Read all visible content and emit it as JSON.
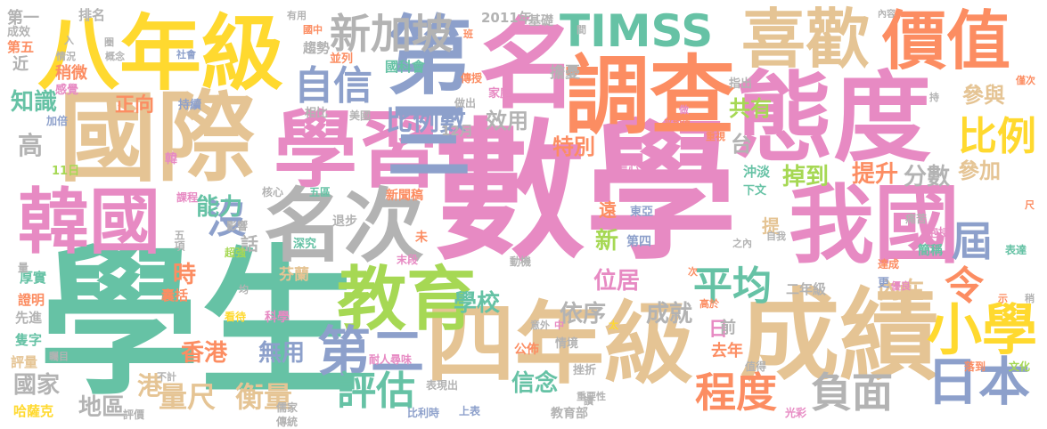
{
  "palette": [
    "#e78ac3",
    "#66c2a5",
    "#e5c494",
    "#ffd92f",
    "#fc8d62",
    "#8da0cb",
    "#a6d854",
    "#b3b3b3"
  ],
  "words": [
    {
      "text": "數學",
      "color": "#e78ac3",
      "orient": "h"
    },
    {
      "text": "學生",
      "color": "#66c2a5",
      "orient": "h"
    },
    {
      "text": "國際",
      "color": "#e5c494",
      "orient": "h"
    },
    {
      "text": "四年級",
      "color": "#e5c494",
      "orient": "h"
    },
    {
      "text": "成績",
      "color": "#e5c494",
      "orient": "h"
    },
    {
      "text": "學習",
      "color": "#e78ac3",
      "orient": "h"
    },
    {
      "text": "態度",
      "color": "#e78ac3",
      "orient": "h"
    },
    {
      "text": "八年級",
      "color": "#ffd92f",
      "orient": "h"
    },
    {
      "text": "調查",
      "color": "#fc8d62",
      "orient": "h"
    },
    {
      "text": "名次",
      "color": "#b3b3b3",
      "orient": "h"
    },
    {
      "text": "我國",
      "color": "#e78ac3",
      "orient": "h"
    },
    {
      "text": "韓國",
      "color": "#e78ac3",
      "orient": "h"
    },
    {
      "text": "名",
      "color": "#e78ac3",
      "orient": "h"
    },
    {
      "text": "第三",
      "color": "#8da0cb",
      "orient": "v"
    },
    {
      "text": "喜歡",
      "color": "#e5c494",
      "orient": "h"
    },
    {
      "text": "價值",
      "color": "#fc8d62",
      "orient": "h"
    },
    {
      "text": "教育",
      "color": "#a6d854",
      "orient": "h"
    },
    {
      "text": "TIMSS",
      "color": "#66c2a5",
      "orient": "h"
    },
    {
      "text": "新加坡",
      "color": "#b3b3b3",
      "orient": "h"
    },
    {
      "text": "第二",
      "color": "#8da0cb",
      "orient": "h"
    },
    {
      "text": "小學",
      "color": "#ffd92f",
      "orient": "h"
    },
    {
      "text": "日本",
      "color": "#8da0cb",
      "orient": "h"
    },
    {
      "text": "平均",
      "color": "#66c2a5",
      "orient": "h"
    },
    {
      "text": "評估",
      "color": "#66c2a5",
      "orient": "h"
    },
    {
      "text": "自信",
      "color": "#8da0cb",
      "orient": "h"
    },
    {
      "text": "程度",
      "color": "#fc8d62",
      "orient": "h"
    },
    {
      "text": "負面",
      "color": "#b3b3b3",
      "orient": "h"
    },
    {
      "text": "比例",
      "color": "#ffd92f",
      "orient": "h"
    },
    {
      "text": "沒",
      "color": "#8da0cb",
      "orient": "h"
    },
    {
      "text": "令",
      "color": "#fc8d62",
      "orient": "h"
    },
    {
      "text": "屆",
      "color": "#8da0cb",
      "orient": "h"
    },
    {
      "text": "量尺",
      "color": "#e5c494",
      "orient": "h"
    },
    {
      "text": "衡量",
      "color": "#e5c494",
      "orient": "h"
    },
    {
      "text": "比例數",
      "color": "#8da0cb",
      "orient": "h"
    },
    {
      "text": "能力",
      "color": "#66c2a5",
      "orient": "h"
    },
    {
      "text": "特別",
      "color": "#fc8d62",
      "orient": "h"
    },
    {
      "text": "提升",
      "color": "#fc8d62",
      "orient": "h"
    },
    {
      "text": "掉到",
      "color": "#a6d854",
      "orient": "h"
    },
    {
      "text": "分數",
      "color": "#b3b3b3",
      "orient": "h"
    },
    {
      "text": "學校",
      "color": "#66c2a5",
      "orient": "h"
    },
    {
      "text": "位居",
      "color": "#e78ac3",
      "orient": "h"
    },
    {
      "text": "依序",
      "color": "#b3b3b3",
      "orient": "h"
    },
    {
      "text": "成就",
      "color": "#b3b3b3",
      "orient": "h"
    },
    {
      "text": "內在",
      "color": "#e5c494",
      "orient": "h"
    },
    {
      "text": "信念",
      "color": "#66c2a5",
      "orient": "h"
    },
    {
      "text": "香港",
      "color": "#fc8d62",
      "orient": "h"
    },
    {
      "text": "無用",
      "color": "#8da0cb",
      "orient": "h"
    },
    {
      "text": "國家",
      "color": "#b3b3b3",
      "orient": "h"
    },
    {
      "text": "地區",
      "color": "#b3b3b3",
      "orient": "h"
    },
    {
      "text": "知識",
      "color": "#66c2a5",
      "orient": "h"
    },
    {
      "text": "正向",
      "color": "#fc8d62",
      "orient": "h"
    },
    {
      "text": "效用",
      "color": "#b3b3b3",
      "orient": "h"
    },
    {
      "text": "共有",
      "color": "#a6d854",
      "orient": "h"
    },
    {
      "text": "參與",
      "color": "#e5c494",
      "orient": "h"
    },
    {
      "text": "參加",
      "color": "#e5c494",
      "orient": "h"
    },
    {
      "text": "高",
      "color": "#b3b3b3",
      "orient": "h"
    },
    {
      "text": "時",
      "color": "#fc8d62",
      "orient": "h"
    },
    {
      "text": "港",
      "color": "#e5c494",
      "orient": "h"
    },
    {
      "text": "新",
      "color": "#a6d854",
      "orient": "h"
    },
    {
      "text": "台",
      "color": "#b3b3b3",
      "orient": "h"
    },
    {
      "text": "日",
      "color": "#e78ac3",
      "orient": "h"
    },
    {
      "text": "遠",
      "color": "#fc8d62",
      "orient": "h"
    },
    {
      "text": "前",
      "color": "#b3b3b3",
      "orient": "h"
    },
    {
      "text": "話",
      "color": "#b3b3b3",
      "orient": "h"
    },
    {
      "text": "提",
      "color": "#e5c494",
      "orient": "h"
    },
    {
      "text": "去年",
      "color": "#fc8d62",
      "orient": "h"
    },
    {
      "text": "第一",
      "color": "#b3b3b3",
      "orient": "h"
    },
    {
      "text": "排名",
      "color": "#b3b3b3",
      "orient": "h"
    },
    {
      "text": "成效",
      "color": "#b3b3b3",
      "orient": "h"
    },
    {
      "text": "第五",
      "color": "#fc8d62",
      "orient": "h"
    },
    {
      "text": "近",
      "color": "#b3b3b3",
      "orient": "h"
    },
    {
      "text": "稍微",
      "color": "#fc8d62",
      "orient": "h"
    },
    {
      "text": "感覺",
      "color": "#e78ac3",
      "orient": "h"
    },
    {
      "text": "加倍",
      "color": "#8da0cb",
      "orient": "h"
    },
    {
      "text": "11日",
      "color": "#a6d854",
      "orient": "h"
    },
    {
      "text": "12月",
      "color": "#b3b3b3",
      "orient": "h"
    },
    {
      "text": "2011年",
      "color": "#b3b3b3",
      "orient": "h"
    },
    {
      "text": "基礎",
      "color": "#b3b3b3",
      "orient": "h"
    },
    {
      "text": "趨勢",
      "color": "#b3b3b3",
      "orient": "h"
    },
    {
      "text": "並列",
      "color": "#fc8d62",
      "orient": "h"
    },
    {
      "text": "國科會",
      "color": "#66c2a5",
      "orient": "h"
    },
    {
      "text": "傳授",
      "color": "#fc8d62",
      "orient": "h"
    },
    {
      "text": "家庭",
      "color": "#e78ac3",
      "orient": "h"
    },
    {
      "text": "擔憂",
      "color": "#b3b3b3",
      "orient": "h"
    },
    {
      "text": "相比",
      "color": "#b3b3b3",
      "orient": "h"
    },
    {
      "text": "美國",
      "color": "#b3b3b3",
      "orient": "h"
    },
    {
      "text": "做出",
      "color": "#b3b3b3",
      "orient": "h"
    },
    {
      "text": "持續",
      "color": "#8da0cb",
      "orient": "h"
    },
    {
      "text": "韓",
      "color": "#e78ac3",
      "orient": "h"
    },
    {
      "text": "課程",
      "color": "#e78ac3",
      "orient": "h"
    },
    {
      "text": "核心",
      "color": "#b3b3b3",
      "orient": "h"
    },
    {
      "text": "五區",
      "color": "#66c2a5",
      "orient": "h"
    },
    {
      "text": "新聞稿",
      "color": "#fc8d62",
      "orient": "h"
    },
    {
      "text": "東亞",
      "color": "#8da0cb",
      "orient": "h"
    },
    {
      "text": "信心",
      "color": "#e78ac3",
      "orient": "h"
    },
    {
      "text": "退步",
      "color": "#b3b3b3",
      "orient": "h"
    },
    {
      "text": "深究",
      "color": "#66c2a5",
      "orient": "h"
    },
    {
      "text": "未",
      "color": "#fc8d62",
      "orient": "h"
    },
    {
      "text": "末段",
      "color": "#e78ac3",
      "orient": "h"
    },
    {
      "text": "動機",
      "color": "#b3b3b3",
      "orient": "h"
    },
    {
      "text": "第四",
      "color": "#8da0cb",
      "orient": "h"
    },
    {
      "text": "芬蘭",
      "color": "#e5c494",
      "orient": "h"
    },
    {
      "text": "影響",
      "color": "#b3b3b3",
      "orient": "h"
    },
    {
      "text": "超強",
      "color": "#a6d854",
      "orient": "h"
    },
    {
      "text": "五項",
      "color": "#b3b3b3",
      "orient": "v"
    },
    {
      "text": "厚實",
      "color": "#66c2a5",
      "orient": "h"
    },
    {
      "text": "證明",
      "color": "#fc8d62",
      "orient": "h"
    },
    {
      "text": "先進",
      "color": "#b3b3b3",
      "orient": "h"
    },
    {
      "text": "隻字",
      "color": "#66c2a5",
      "orient": "h"
    },
    {
      "text": "評量",
      "color": "#e5c494",
      "orient": "h"
    },
    {
      "text": "哈薩克",
      "color": "#ffd92f",
      "orient": "h"
    },
    {
      "text": "量",
      "color": "#b3b3b3",
      "orient": "h"
    },
    {
      "text": "囊括",
      "color": "#fc8d62",
      "orient": "h"
    },
    {
      "text": "看待",
      "color": "#ffd92f",
      "orient": "h"
    },
    {
      "text": "科學",
      "color": "#e78ac3",
      "orient": "h"
    },
    {
      "text": "耐人尋味",
      "color": "#e78ac3",
      "orient": "h"
    },
    {
      "text": "不計",
      "color": "#b3b3b3",
      "orient": "h"
    },
    {
      "text": "儒家",
      "color": "#b3b3b3",
      "orient": "h"
    },
    {
      "text": "傳統",
      "color": "#b3b3b3",
      "orient": "h"
    },
    {
      "text": "評價",
      "color": "#b3b3b3",
      "orient": "h"
    },
    {
      "text": "表現出",
      "color": "#b3b3b3",
      "orient": "h"
    },
    {
      "text": "比利時",
      "color": "#8da0cb",
      "orient": "h"
    },
    {
      "text": "上表",
      "color": "#8da0cb",
      "orient": "h"
    },
    {
      "text": "教育部",
      "color": "#b3b3b3",
      "orient": "h"
    },
    {
      "text": "公佈",
      "color": "#fc8d62",
      "orient": "h"
    },
    {
      "text": "情境",
      "color": "#b3b3b3",
      "orient": "h"
    },
    {
      "text": "挫折",
      "color": "#b3b3b3",
      "orient": "h"
    },
    {
      "text": "重要性",
      "color": "#b3b3b3",
      "orient": "h"
    },
    {
      "text": "二年級",
      "color": "#b3b3b3",
      "orient": "h"
    },
    {
      "text": "沖淡",
      "color": "#66c2a5",
      "orient": "h"
    },
    {
      "text": "下文",
      "color": "#66c2a5",
      "orient": "h"
    },
    {
      "text": "抱持",
      "color": "#e78ac3",
      "orient": "h"
    },
    {
      "text": "痛苦",
      "color": "#b3b3b3",
      "orient": "h"
    },
    {
      "text": "簡稱",
      "color": "#66c2a5",
      "orient": "h"
    },
    {
      "text": "表達",
      "color": "#66c2a5",
      "orient": "h"
    },
    {
      "text": "達成",
      "color": "#fc8d62",
      "orient": "h"
    },
    {
      "text": "更",
      "color": "#8da0cb",
      "orient": "h"
    },
    {
      "text": "優良",
      "color": "#e78ac3",
      "orient": "h"
    },
    {
      "text": "高於",
      "color": "#fc8d62",
      "orient": "h"
    },
    {
      "text": "值得",
      "color": "#b3b3b3",
      "orient": "h"
    },
    {
      "text": "落到",
      "color": "#fc8d62",
      "orient": "h"
    },
    {
      "text": "文化",
      "color": "#a6d854",
      "orient": "h"
    },
    {
      "text": "光彩",
      "color": "#e78ac3",
      "orient": "h"
    },
    {
      "text": "指出",
      "color": "#b3b3b3",
      "orient": "h"
    },
    {
      "text": "平均值",
      "color": "#fc8d62",
      "orient": "h"
    },
    {
      "text": "重視",
      "color": "#fc8d62",
      "orient": "h"
    },
    {
      "text": "內容",
      "color": "#b3b3b3",
      "orient": "h"
    },
    {
      "text": "僅次",
      "color": "#fc8d62",
      "orient": "h"
    },
    {
      "text": "有用",
      "color": "#b3b3b3",
      "orient": "h"
    },
    {
      "text": "國中",
      "color": "#fc8d62",
      "orient": "h"
    },
    {
      "text": "社會",
      "color": "#8da0cb",
      "orient": "h"
    },
    {
      "text": "情況",
      "color": "#b3b3b3",
      "orient": "h"
    },
    {
      "text": "概念",
      "color": "#b3b3b3",
      "orient": "h"
    },
    {
      "text": "入",
      "color": "#b3b3b3",
      "orient": "h"
    },
    {
      "text": "圈",
      "color": "#b3b3b3",
      "orient": "h"
    },
    {
      "text": "班",
      "color": "#fc8d62",
      "orient": "h"
    },
    {
      "text": "間",
      "color": "#b3b3b3",
      "orient": "h"
    },
    {
      "text": "持",
      "color": "#b3b3b3",
      "orient": "h"
    },
    {
      "text": "做",
      "color": "#e78ac3",
      "orient": "h"
    },
    {
      "text": "讀",
      "color": "#b3b3b3",
      "orient": "h"
    },
    {
      "text": "太",
      "color": "#ffd92f",
      "orient": "h"
    },
    {
      "text": "中",
      "color": "#e78ac3",
      "orient": "h"
    },
    {
      "text": "意外",
      "color": "#b3b3b3",
      "orient": "h"
    },
    {
      "text": "均",
      "color": "#b3b3b3",
      "orient": "h"
    },
    {
      "text": "次",
      "color": "#fc8d62",
      "orient": "h"
    },
    {
      "text": "之內",
      "color": "#b3b3b3",
      "orient": "h"
    },
    {
      "text": "自我",
      "color": "#b3b3b3",
      "orient": "h"
    },
    {
      "text": "尺",
      "color": "#fc8d62",
      "orient": "h"
    },
    {
      "text": "示",
      "color": "#fc8d62",
      "orient": "h"
    },
    {
      "text": "稍",
      "color": "#b3b3b3",
      "orient": "h"
    },
    {
      "text": "矚目",
      "color": "#b3b3b3",
      "orient": "h"
    }
  ]
}
